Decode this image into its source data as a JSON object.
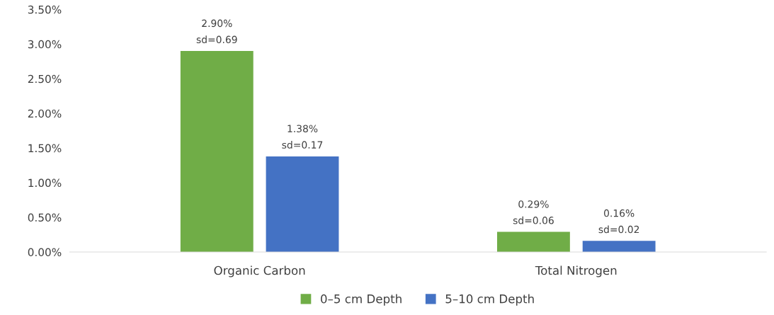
{
  "chart_data": {
    "type": "bar",
    "categories": [
      "Organic Carbon",
      "Total Nitrogen"
    ],
    "series": [
      {
        "name": "0–5 cm Depth",
        "color": "#70ad47",
        "values": [
          2.9,
          0.29
        ],
        "value_labels": [
          "2.90%\nsd=0.69",
          "0.29%\nsd=0.06"
        ]
      },
      {
        "name": "5–10 cm Depth",
        "color": "#4472c4",
        "values": [
          1.38,
          0.16
        ],
        "value_labels": [
          "1.38%\nsd=0.17",
          "0.16%\nsd=0.02"
        ]
      }
    ],
    "ylim": [
      0,
      3.5
    ],
    "yticks": [
      {
        "value": 0,
        "label": "0.00%"
      },
      {
        "value": 0.5,
        "label": "0.50%"
      },
      {
        "value": 1.0,
        "label": "1.00%"
      },
      {
        "value": 1.5,
        "label": "1.50%"
      },
      {
        "value": 2.0,
        "label": "2.00%"
      },
      {
        "value": 2.5,
        "label": "2.50%"
      },
      {
        "value": 3.0,
        "label": "3.00%"
      },
      {
        "value": 3.5,
        "label": "3.50%"
      }
    ],
    "grid": false,
    "legend": "bottom"
  }
}
